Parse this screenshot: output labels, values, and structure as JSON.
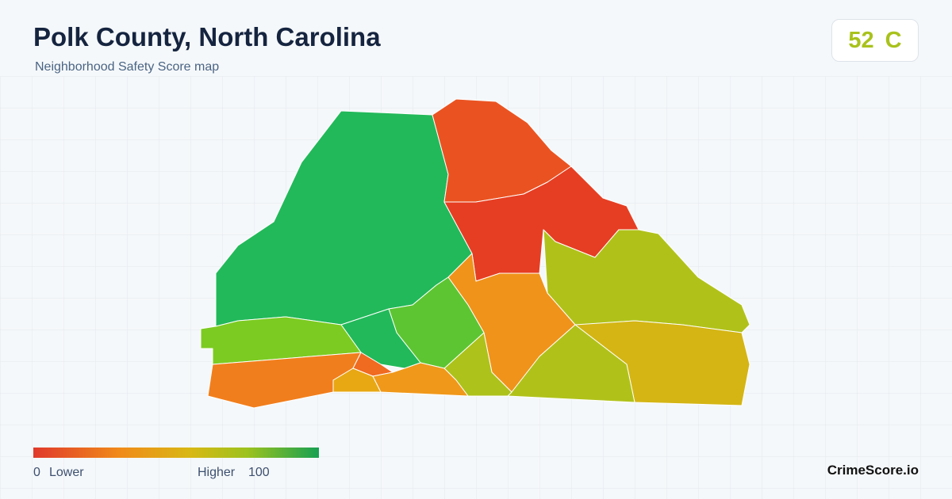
{
  "header": {
    "title": "Polk County, North Carolina",
    "subtitle": "Neighborhood Safety Score map"
  },
  "score": {
    "value": 52,
    "grade": "C"
  },
  "legend": {
    "min": 0,
    "min_label": "Lower",
    "max_label": "Higher",
    "max": 100
  },
  "footer": {
    "brand": "CrimeScore.io"
  }
}
